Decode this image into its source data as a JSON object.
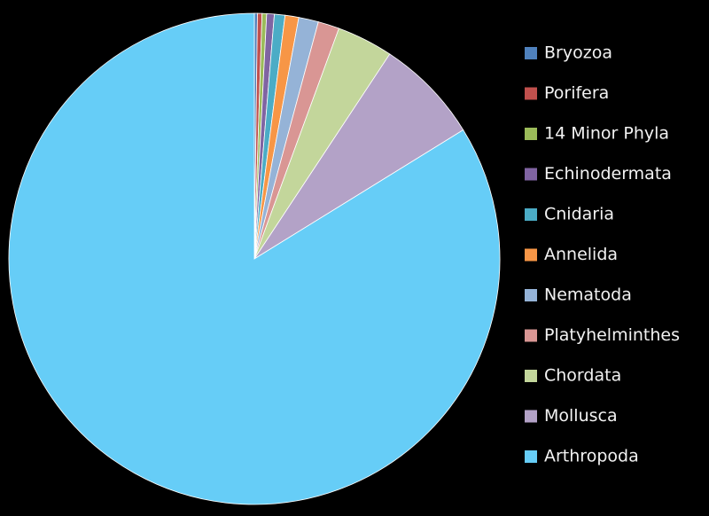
{
  "chart_data": {
    "type": "pie",
    "categories": [
      "Bryozoa",
      "Porifera",
      "14 Minor Phyla",
      "Echinodermata",
      "Cnidaria",
      "Annelida",
      "Nematoda",
      "Platyhelminthes",
      "Chordata",
      "Mollusca",
      "Arthropoda"
    ],
    "values": [
      0.2,
      0.3,
      0.3,
      0.5,
      0.7,
      0.9,
      1.3,
      1.4,
      3.7,
      6.9,
      83.8
    ],
    "colors": [
      "#4f81bd",
      "#c0504d",
      "#9bbb59",
      "#8064a2",
      "#4bacc6",
      "#f79646",
      "#95b3d7",
      "#d99694",
      "#c3d69b",
      "#b3a2c7",
      "#66cdf7"
    ],
    "legend": "right"
  }
}
